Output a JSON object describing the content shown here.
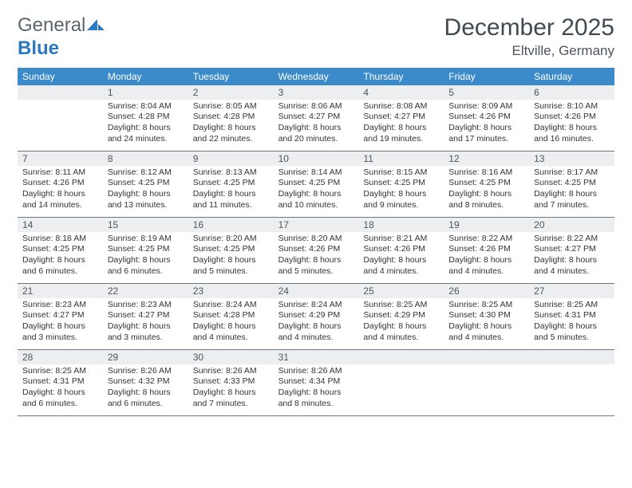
{
  "logo": {
    "text1": "General",
    "text2": "Blue",
    "icon_color": "#2d79c0"
  },
  "header": {
    "month_title": "December 2025",
    "location": "Eltville, Germany"
  },
  "colors": {
    "dow_bg": "#3b8bca",
    "dow_text": "#ffffff",
    "daynum_bg": "#eceeef",
    "daynum_text": "#4c5760",
    "body_text": "#333333",
    "rule": "#6a7680"
  },
  "day_names": [
    "Sunday",
    "Monday",
    "Tuesday",
    "Wednesday",
    "Thursday",
    "Friday",
    "Saturday"
  ],
  "first_weekday_offset": 1,
  "days": [
    {
      "n": 1,
      "sunrise": "8:04 AM",
      "sunset": "4:28 PM",
      "daylight": "8 hours and 24 minutes."
    },
    {
      "n": 2,
      "sunrise": "8:05 AM",
      "sunset": "4:28 PM",
      "daylight": "8 hours and 22 minutes."
    },
    {
      "n": 3,
      "sunrise": "8:06 AM",
      "sunset": "4:27 PM",
      "daylight": "8 hours and 20 minutes."
    },
    {
      "n": 4,
      "sunrise": "8:08 AM",
      "sunset": "4:27 PM",
      "daylight": "8 hours and 19 minutes."
    },
    {
      "n": 5,
      "sunrise": "8:09 AM",
      "sunset": "4:26 PM",
      "daylight": "8 hours and 17 minutes."
    },
    {
      "n": 6,
      "sunrise": "8:10 AM",
      "sunset": "4:26 PM",
      "daylight": "8 hours and 16 minutes."
    },
    {
      "n": 7,
      "sunrise": "8:11 AM",
      "sunset": "4:26 PM",
      "daylight": "8 hours and 14 minutes."
    },
    {
      "n": 8,
      "sunrise": "8:12 AM",
      "sunset": "4:25 PM",
      "daylight": "8 hours and 13 minutes."
    },
    {
      "n": 9,
      "sunrise": "8:13 AM",
      "sunset": "4:25 PM",
      "daylight": "8 hours and 11 minutes."
    },
    {
      "n": 10,
      "sunrise": "8:14 AM",
      "sunset": "4:25 PM",
      "daylight": "8 hours and 10 minutes."
    },
    {
      "n": 11,
      "sunrise": "8:15 AM",
      "sunset": "4:25 PM",
      "daylight": "8 hours and 9 minutes."
    },
    {
      "n": 12,
      "sunrise": "8:16 AM",
      "sunset": "4:25 PM",
      "daylight": "8 hours and 8 minutes."
    },
    {
      "n": 13,
      "sunrise": "8:17 AM",
      "sunset": "4:25 PM",
      "daylight": "8 hours and 7 minutes."
    },
    {
      "n": 14,
      "sunrise": "8:18 AM",
      "sunset": "4:25 PM",
      "daylight": "8 hours and 6 minutes."
    },
    {
      "n": 15,
      "sunrise": "8:19 AM",
      "sunset": "4:25 PM",
      "daylight": "8 hours and 6 minutes."
    },
    {
      "n": 16,
      "sunrise": "8:20 AM",
      "sunset": "4:25 PM",
      "daylight": "8 hours and 5 minutes."
    },
    {
      "n": 17,
      "sunrise": "8:20 AM",
      "sunset": "4:26 PM",
      "daylight": "8 hours and 5 minutes."
    },
    {
      "n": 18,
      "sunrise": "8:21 AM",
      "sunset": "4:26 PM",
      "daylight": "8 hours and 4 minutes."
    },
    {
      "n": 19,
      "sunrise": "8:22 AM",
      "sunset": "4:26 PM",
      "daylight": "8 hours and 4 minutes."
    },
    {
      "n": 20,
      "sunrise": "8:22 AM",
      "sunset": "4:27 PM",
      "daylight": "8 hours and 4 minutes."
    },
    {
      "n": 21,
      "sunrise": "8:23 AM",
      "sunset": "4:27 PM",
      "daylight": "8 hours and 3 minutes."
    },
    {
      "n": 22,
      "sunrise": "8:23 AM",
      "sunset": "4:27 PM",
      "daylight": "8 hours and 3 minutes."
    },
    {
      "n": 23,
      "sunrise": "8:24 AM",
      "sunset": "4:28 PM",
      "daylight": "8 hours and 4 minutes."
    },
    {
      "n": 24,
      "sunrise": "8:24 AM",
      "sunset": "4:29 PM",
      "daylight": "8 hours and 4 minutes."
    },
    {
      "n": 25,
      "sunrise": "8:25 AM",
      "sunset": "4:29 PM",
      "daylight": "8 hours and 4 minutes."
    },
    {
      "n": 26,
      "sunrise": "8:25 AM",
      "sunset": "4:30 PM",
      "daylight": "8 hours and 4 minutes."
    },
    {
      "n": 27,
      "sunrise": "8:25 AM",
      "sunset": "4:31 PM",
      "daylight": "8 hours and 5 minutes."
    },
    {
      "n": 28,
      "sunrise": "8:25 AM",
      "sunset": "4:31 PM",
      "daylight": "8 hours and 6 minutes."
    },
    {
      "n": 29,
      "sunrise": "8:26 AM",
      "sunset": "4:32 PM",
      "daylight": "8 hours and 6 minutes."
    },
    {
      "n": 30,
      "sunrise": "8:26 AM",
      "sunset": "4:33 PM",
      "daylight": "8 hours and 7 minutes."
    },
    {
      "n": 31,
      "sunrise": "8:26 AM",
      "sunset": "4:34 PM",
      "daylight": "8 hours and 8 minutes."
    }
  ],
  "labels": {
    "sunrise": "Sunrise:",
    "sunset": "Sunset:",
    "daylight": "Daylight:"
  }
}
